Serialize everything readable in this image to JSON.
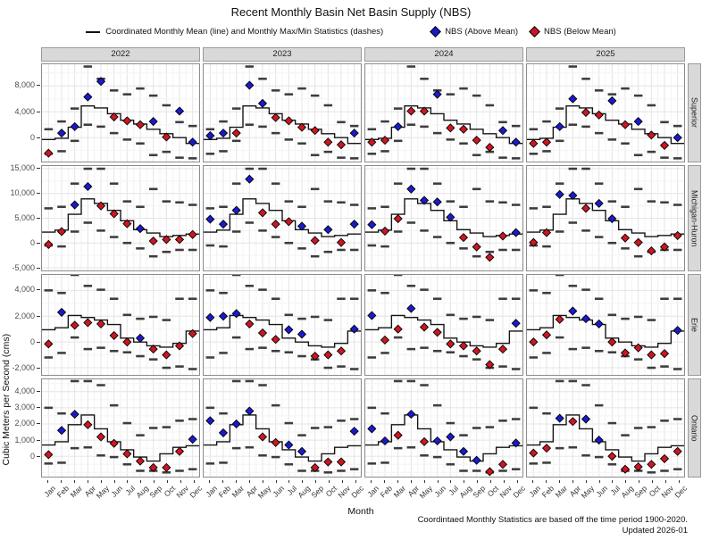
{
  "title": "Recent Monthly Basin Net Basin Supply (NBS)",
  "legend": {
    "mean_label": "Coordinated Monthly Mean (line) and Monthly Max/Min Statistics (dashes)",
    "above_label": "NBS (Above Mean)",
    "below_label": "NBS (Below Mean)"
  },
  "xlabel": "Month",
  "ylabel": "Cubic Meters per Second (cms)",
  "footer_line1": "Coordintaed Monthly Statistics are based off the time period 1900-2020.",
  "footer_line2": "Updated 2026-01",
  "colors": {
    "above": "#1a1acd",
    "below": "#cc1622",
    "mean_line": "#141414",
    "dash": "#3d3d3d",
    "strip_bg": "#d9d9d9",
    "grid_major": "#e4e4e4",
    "grid_minor": "#f3f3f3"
  },
  "months": [
    "Jan",
    "Feb",
    "Mar",
    "Apr",
    "May",
    "Jun",
    "Jul",
    "Aug",
    "Sep",
    "Oct",
    "Nov",
    "Dec"
  ],
  "years": [
    "2022",
    "2023",
    "2024",
    "2025"
  ],
  "chart_data": {
    "type": "line",
    "subtype": "faceted step-line with max/min dashes and NBS scatter points, facets: year columns x basin rows",
    "legend_position": "top",
    "grid": true,
    "rows": [
      {
        "basin": "Superior",
        "ylim": [
          -3700,
          11350
        ],
        "yticks": [
          8000,
          4000,
          0
        ],
        "ytick_labels": [
          "8,000",
          "4,000",
          "0"
        ],
        "minor_step": 2000,
        "mean": [
          -300,
          -100,
          1600,
          4900,
          4600,
          3700,
          2700,
          2100,
          1300,
          600,
          0,
          -900
        ],
        "max": [
          1300,
          2500,
          4500,
          11000,
          9100,
          7300,
          6700,
          7600,
          6500,
          5000,
          2400,
          1800
        ],
        "min": [
          -2500,
          -2100,
          -500,
          2000,
          1700,
          700,
          -300,
          -900,
          -2700,
          -2200,
          -3100,
          -3200
        ],
        "nbs": {
          "2022": [
            -2400,
            700,
            1700,
            6300,
            8700,
            3200,
            2600,
            2000,
            2500,
            100,
            4100,
            -700
          ],
          "2023": [
            300,
            700,
            700,
            8100,
            5300,
            3100,
            2600,
            1600,
            1100,
            -700,
            -1100,
            700
          ],
          "2024": [
            -700,
            -400,
            1700,
            4100,
            4100,
            6700,
            1500,
            1300,
            -400,
            -1500,
            1100,
            -700
          ],
          "2025": [
            -900,
            -700,
            1700,
            6000,
            3900,
            3500,
            5700,
            2000,
            2500,
            400,
            -1200,
            0
          ]
        }
      },
      {
        "basin": "Michigan-Huron",
        "ylim": [
          -5550,
          15550
        ],
        "yticks": [
          15000,
          10000,
          5000,
          0,
          -5000
        ],
        "ytick_labels": [
          "15,000",
          "10,000",
          "5,000",
          "0",
          "-5,000"
        ],
        "minor_step": 2500,
        "mean": [
          2200,
          2600,
          5800,
          8900,
          8000,
          6600,
          4500,
          2700,
          2000,
          1300,
          1500,
          1800
        ],
        "max": [
          7000,
          7300,
          12000,
          15000,
          15000,
          12000,
          8400,
          7300,
          10900,
          8400,
          8200,
          7700
        ],
        "min": [
          -500,
          -700,
          2300,
          4100,
          2500,
          1200,
          0,
          -1100,
          -2700,
          -1800,
          -1400,
          -1400
        ],
        "nbs": {
          "2022": [
            -300,
            2300,
            7700,
            11400,
            7500,
            5900,
            3900,
            2900,
            400,
            700,
            700,
            1700
          ],
          "2023": [
            4800,
            3800,
            6600,
            12900,
            6100,
            3800,
            4300,
            3400,
            500,
            2700,
            100,
            3800
          ],
          "2024": [
            3700,
            2400,
            4900,
            10900,
            8600,
            8300,
            5200,
            1100,
            -800,
            -2900,
            1400,
            2100
          ],
          "2025": [
            100,
            2100,
            9800,
            9600,
            7000,
            8000,
            4900,
            1000,
            100,
            -1600,
            -800,
            1500
          ]
        }
      },
      {
        "basin": "Erie",
        "ylim": [
          -2550,
          5200
        ],
        "yticks": [
          4000,
          2000,
          0,
          -2000
        ],
        "ytick_labels": [
          "4,000",
          "2,000",
          "0",
          "-2,000"
        ],
        "minor_step": 1000,
        "mean": [
          950,
          1100,
          2050,
          1900,
          1700,
          1350,
          300,
          0,
          -300,
          -400,
          -100,
          850
        ],
        "max": [
          4000,
          3800,
          5200,
          4350,
          4050,
          3350,
          2100,
          1800,
          1950,
          1700,
          3350,
          3350
        ],
        "min": [
          -1200,
          -850,
          350,
          -550,
          -450,
          -700,
          -800,
          -1100,
          -1350,
          -2000,
          -1900,
          -2100
        ],
        "nbs": {
          "2022": [
            -150,
            2300,
            1300,
            1500,
            1400,
            500,
            0,
            300,
            -550,
            -1000,
            -300,
            650
          ],
          "2023": [
            1900,
            2000,
            2200,
            1400,
            700,
            200,
            950,
            600,
            -1100,
            -1000,
            -700,
            1000
          ],
          "2024": [
            2050,
            150,
            1000,
            2600,
            1150,
            750,
            -150,
            -300,
            -700,
            -1750,
            -550,
            1450
          ],
          "2025": [
            0,
            550,
            1750,
            2400,
            1800,
            1400,
            0,
            -850,
            -450,
            -1000,
            -900,
            900
          ]
        }
      },
      {
        "basin": "Ontario",
        "ylim": [
          -1260,
          4760
        ],
        "yticks": [
          4000,
          3000,
          2000,
          1000,
          0
        ],
        "ytick_labels": [
          "4,000",
          "3,000",
          "2,000",
          "1,000",
          "0"
        ],
        "minor_step": 500,
        "mean": [
          700,
          900,
          1950,
          2550,
          1700,
          900,
          400,
          -50,
          -300,
          150,
          550,
          650
        ],
        "max": [
          3000,
          2650,
          4650,
          4650,
          4400,
          3150,
          2050,
          1300,
          1750,
          1800,
          2200,
          2300
        ],
        "min": [
          -450,
          -400,
          500,
          550,
          50,
          -50,
          -500,
          -900,
          -900,
          -1000,
          -900,
          -800
        ],
        "nbs": {
          "2022": [
            100,
            1600,
            2600,
            1950,
            1200,
            800,
            150,
            -300,
            -700,
            -700,
            300,
            1050
          ],
          "2023": [
            2200,
            1450,
            2000,
            2800,
            1200,
            850,
            700,
            300,
            -700,
            -350,
            -350,
            1550
          ],
          "2024": [
            1700,
            950,
            1300,
            2600,
            900,
            950,
            1200,
            300,
            -250,
            -950,
            -500,
            820
          ],
          "2025": [
            200,
            500,
            2350,
            2150,
            2300,
            1000,
            0,
            -800,
            -650,
            -500,
            -150,
            300
          ]
        }
      }
    ]
  }
}
